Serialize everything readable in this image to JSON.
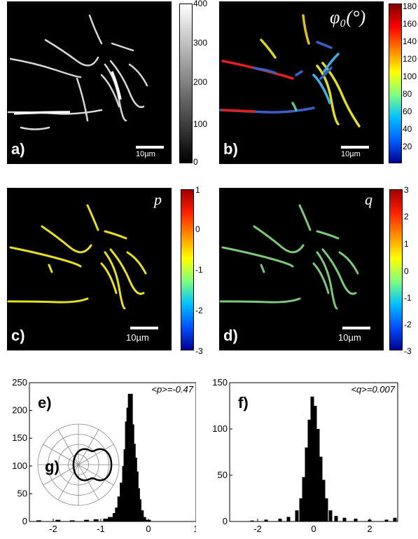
{
  "panels": {
    "a": {
      "label": "a)",
      "scale": "10µm"
    },
    "b": {
      "label": "b)",
      "scale": "10µm",
      "symbol": "φ₀(°)"
    },
    "c": {
      "label": "c)",
      "scale": "10µm",
      "symbol": "p"
    },
    "d": {
      "label": "d)",
      "scale": "10µm",
      "symbol": "q"
    }
  },
  "colorbars": {
    "a": {
      "ticks": [
        "400",
        "300",
        "200",
        "100",
        "0"
      ],
      "gradient": "gray"
    },
    "b": {
      "ticks": [
        "180",
        "160",
        "140",
        "120",
        "100",
        "80",
        "60",
        "40",
        "20"
      ],
      "gradient": "jet"
    },
    "c": {
      "ticks": [
        "1",
        "0",
        "-1",
        "-2",
        "-3"
      ],
      "gradient": "jet"
    },
    "d": {
      "ticks": [
        "3",
        "2",
        "1",
        "0",
        "-1",
        "-2",
        "-3"
      ],
      "gradient": "jet"
    }
  },
  "chart_data": [
    {
      "type": "bar",
      "panel_label": "e)",
      "inset_label": "g)",
      "annotation": "<p>=-0.47",
      "xlim": [
        -2.5,
        1
      ],
      "ylim": [
        0,
        250
      ],
      "xticks": [
        "-2",
        "-1",
        "0",
        "1"
      ],
      "yticks": [
        "0",
        "50",
        "100",
        "150",
        "200",
        "250"
      ],
      "x": [
        -2.3,
        -1.9,
        -1.6,
        -1.3,
        -1.1,
        -0.9,
        -0.8,
        -0.7,
        -0.65,
        -0.6,
        -0.55,
        -0.5,
        -0.47,
        -0.44,
        -0.41,
        -0.38,
        -0.35,
        -0.32,
        -0.29,
        -0.26,
        -0.23,
        -0.2,
        -0.15,
        -0.1,
        0.0
      ],
      "values": [
        2,
        3,
        2,
        3,
        4,
        5,
        8,
        15,
        25,
        45,
        70,
        100,
        130,
        180,
        205,
        230,
        175,
        140,
        115,
        90,
        60,
        40,
        20,
        8,
        3
      ]
    },
    {
      "type": "bar",
      "panel_label": "f)",
      "annotation": "<q>=0.007",
      "xlim": [
        -3,
        3
      ],
      "ylim": [
        0,
        150
      ],
      "xticks": [
        "-2",
        "0",
        "2"
      ],
      "yticks": [
        "0",
        "50",
        "100",
        "150"
      ],
      "x": [
        -2.2,
        -1.7,
        -1.2,
        -0.9,
        -0.6,
        -0.45,
        -0.35,
        -0.25,
        -0.15,
        -0.05,
        0.05,
        0.15,
        0.25,
        0.35,
        0.45,
        0.6,
        0.8,
        1.1,
        1.5,
        2.0,
        2.6,
        2.9
      ],
      "values": [
        1,
        2,
        3,
        5,
        12,
        25,
        48,
        80,
        110,
        135,
        125,
        100,
        70,
        45,
        25,
        12,
        6,
        4,
        3,
        2,
        2,
        4
      ]
    }
  ]
}
